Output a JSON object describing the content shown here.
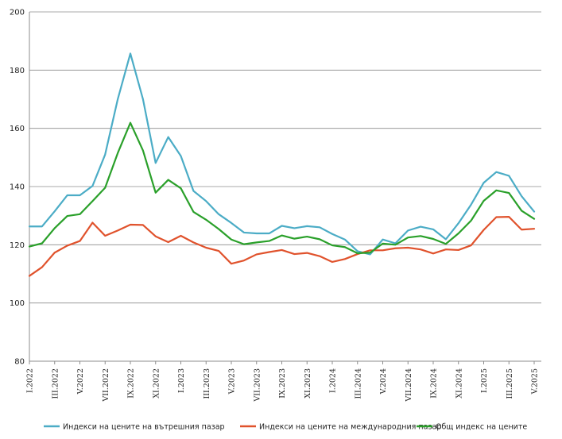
{
  "chart_data": {
    "type": "line",
    "title": "",
    "xlabel": "",
    "ylabel": "",
    "ylim": [
      80,
      200
    ],
    "yticks": [
      80,
      100,
      120,
      140,
      160,
      180,
      200
    ],
    "grid": true,
    "legend_position": "bottom",
    "x": [
      "I.2022",
      "II.2022",
      "III.2022",
      "IV.2022",
      "V.2022",
      "VI.2022",
      "VII.2022",
      "VIII.2022",
      "IX.2022",
      "X.2022",
      "XI.2022",
      "XII.2022",
      "I.2023",
      "II.2023",
      "III.2023",
      "IV.2023",
      "V.2023",
      "VI.2023",
      "VII.2023",
      "VIII.2023",
      "IX.2023",
      "X.2023",
      "XI.2023",
      "XII.2023",
      "I.2024",
      "II.2024",
      "III.2024",
      "IV.2024",
      "V.2024",
      "VI.2024",
      "VII.2024",
      "VIII.2024",
      "IX.2024",
      "X.2024",
      "XI.2024",
      "XII.2024",
      "I.2025",
      "II.2025",
      "III.2025",
      "IV.2025",
      "V.2025"
    ],
    "x_tick_labels": [
      "I.2022",
      "III.2022",
      "V.2022",
      "VII.2022",
      "IX.2022",
      "XI.2022",
      "I.2023",
      "III.2023",
      "V.2023",
      "VII.2023",
      "IX.2023",
      "XI.2023",
      "I.2024",
      "III.2024",
      "V.2024",
      "VII.2024",
      "IX.2024",
      "XI.2024",
      "I.2025",
      "III.2025",
      "V.2025"
    ],
    "series": [
      {
        "name": "Индекси на цените на вътрешния пазар",
        "color": "#4bacc6",
        "values": [
          126.3,
          126.3,
          131.5,
          137.0,
          137.0,
          140.2,
          151.0,
          170.0,
          185.7,
          170.0,
          148.1,
          157.0,
          150.5,
          138.5,
          135.0,
          130.5,
          127.5,
          124.2,
          123.9,
          123.9,
          126.5,
          125.7,
          126.4,
          126.0,
          123.7,
          121.8,
          117.8,
          116.7,
          121.8,
          120.5,
          124.9,
          126.2,
          125.3,
          121.9,
          127.4,
          133.8,
          141.3,
          145.0,
          143.7,
          136.7,
          131.4
        ]
      },
      {
        "name": "Индекси на цените на международния пазар",
        "color": "#e0522c",
        "values": [
          109.3,
          112.3,
          117.3,
          119.7,
          121.3,
          127.6,
          123.1,
          124.9,
          126.9,
          126.8,
          122.9,
          120.9,
          123.1,
          120.8,
          119.0,
          117.9,
          113.5,
          114.6,
          116.7,
          117.5,
          118.2,
          116.8,
          117.2,
          116.1,
          114.1,
          115.1,
          116.8,
          118.1,
          118.1,
          118.8,
          119.0,
          118.4,
          117.0,
          118.4,
          118.2,
          119.8,
          125.1,
          129.5,
          129.6,
          125.2,
          125.5
        ]
      },
      {
        "name": "Общ индекс на цените",
        "color": "#2aa02a",
        "values": [
          119.4,
          120.5,
          125.7,
          129.9,
          130.5,
          135.0,
          139.6,
          151.5,
          161.9,
          152.4,
          137.9,
          142.3,
          139.4,
          131.3,
          128.6,
          125.4,
          121.8,
          120.2,
          120.8,
          121.3,
          123.2,
          122.1,
          122.8,
          121.9,
          119.8,
          119.2,
          117.1,
          117.3,
          120.4,
          120.0,
          122.5,
          123.0,
          122.0,
          120.3,
          123.9,
          128.3,
          135.1,
          138.7,
          137.8,
          131.7,
          128.9
        ]
      }
    ]
  }
}
